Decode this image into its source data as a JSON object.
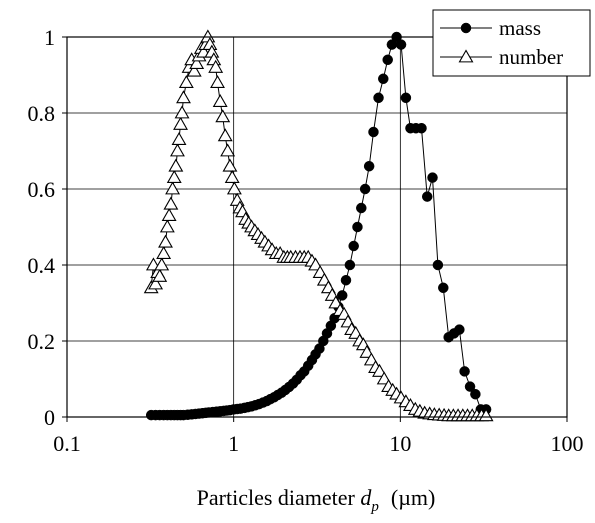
{
  "chart_data": {
    "type": "scatter",
    "xscale": "log",
    "xlim": [
      0.1,
      100
    ],
    "ylim": [
      0,
      1
    ],
    "xticks": [
      "0.1",
      "1",
      "10",
      "100"
    ],
    "yticks": [
      "0",
      "0.2",
      "0.4",
      "0.6",
      "0.8",
      "1"
    ],
    "grid": "horizontal and vertical major gridlines",
    "legend_position": "top-right",
    "xlabel": {
      "prefix": "Particles diameter ",
      "symbol": "d",
      "subscript": "p",
      "unit": "(µm)"
    },
    "series": [
      {
        "name": "mass",
        "marker": "filled-circle",
        "x": [
          0.32,
          0.34,
          0.36,
          0.38,
          0.4,
          0.42,
          0.44,
          0.46,
          0.48,
          0.5,
          0.53,
          0.56,
          0.59,
          0.62,
          0.65,
          0.68,
          0.71,
          0.75,
          0.79,
          0.83,
          0.87,
          0.91,
          0.95,
          1.0,
          1.05,
          1.1,
          1.16,
          1.22,
          1.28,
          1.35,
          1.42,
          1.5,
          1.58,
          1.66,
          1.75,
          1.84,
          1.94,
          2.04,
          2.15,
          2.27,
          2.39,
          2.52,
          2.65,
          2.8,
          2.95,
          3.1,
          3.27,
          3.45,
          3.63,
          3.83,
          4.03,
          4.25,
          4.48,
          4.72,
          4.98,
          5.25,
          5.53,
          5.83,
          6.15,
          6.5,
          6.9,
          7.4,
          7.9,
          8.4,
          8.9,
          9.5,
          10.1,
          10.8,
          11.5,
          12.4,
          13.4,
          14.5,
          15.6,
          16.8,
          18.1,
          19.5,
          21.0,
          22.6,
          24.3,
          26.2,
          28.2,
          30.4,
          32.7
        ],
        "y": [
          0.005,
          0.005,
          0.005,
          0.005,
          0.005,
          0.005,
          0.005,
          0.005,
          0.005,
          0.005,
          0.006,
          0.007,
          0.008,
          0.009,
          0.01,
          0.011,
          0.012,
          0.013,
          0.014,
          0.015,
          0.016,
          0.017,
          0.018,
          0.02,
          0.021,
          0.022,
          0.024,
          0.026,
          0.028,
          0.031,
          0.034,
          0.038,
          0.042,
          0.047,
          0.052,
          0.058,
          0.064,
          0.071,
          0.079,
          0.088,
          0.098,
          0.11,
          0.12,
          0.135,
          0.15,
          0.165,
          0.18,
          0.2,
          0.22,
          0.24,
          0.26,
          0.29,
          0.32,
          0.36,
          0.4,
          0.45,
          0.5,
          0.55,
          0.6,
          0.66,
          0.75,
          0.84,
          0.89,
          0.94,
          0.98,
          1.0,
          0.98,
          0.84,
          0.76,
          0.76,
          0.76,
          0.58,
          0.63,
          0.4,
          0.34,
          0.21,
          0.22,
          0.23,
          0.12,
          0.08,
          0.06,
          0.02,
          0.02
        ]
      },
      {
        "name": "number",
        "marker": "open-triangle",
        "x": [
          0.32,
          0.33,
          0.34,
          0.35,
          0.36,
          0.37,
          0.38,
          0.39,
          0.4,
          0.41,
          0.42,
          0.43,
          0.44,
          0.45,
          0.46,
          0.47,
          0.48,
          0.49,
          0.5,
          0.52,
          0.54,
          0.56,
          0.58,
          0.6,
          0.62,
          0.64,
          0.66,
          0.68,
          0.7,
          0.72,
          0.74,
          0.76,
          0.78,
          0.8,
          0.83,
          0.86,
          0.89,
          0.92,
          0.95,
          0.98,
          1.01,
          1.05,
          1.09,
          1.13,
          1.18,
          1.23,
          1.28,
          1.34,
          1.4,
          1.47,
          1.54,
          1.62,
          1.7,
          1.8,
          1.9,
          2.0,
          2.1,
          2.2,
          2.35,
          2.5,
          2.65,
          2.8,
          2.95,
          3.1,
          3.3,
          3.5,
          3.7,
          3.9,
          4.1,
          4.35,
          4.6,
          4.85,
          5.1,
          5.4,
          5.7,
          6.0,
          6.3,
          6.7,
          7.1,
          7.5,
          8.0,
          8.5,
          9.0,
          9.5,
          10.1,
          10.8,
          11.5,
          12.3,
          13.1,
          14.0,
          15.0,
          16.0,
          17.1,
          18.3,
          19.5,
          20.8,
          22.2,
          23.7,
          25.3,
          27.0,
          28.8,
          30.7,
          32.7
        ],
        "y": [
          0.34,
          0.4,
          0.35,
          0.38,
          0.37,
          0.4,
          0.43,
          0.46,
          0.5,
          0.53,
          0.56,
          0.6,
          0.63,
          0.66,
          0.7,
          0.73,
          0.77,
          0.8,
          0.84,
          0.88,
          0.92,
          0.94,
          0.91,
          0.93,
          0.95,
          0.97,
          0.96,
          0.98,
          1.0,
          0.98,
          0.96,
          0.94,
          0.92,
          0.88,
          0.83,
          0.79,
          0.74,
          0.7,
          0.66,
          0.63,
          0.6,
          0.57,
          0.55,
          0.54,
          0.52,
          0.51,
          0.5,
          0.49,
          0.48,
          0.47,
          0.46,
          0.45,
          0.44,
          0.43,
          0.43,
          0.42,
          0.42,
          0.42,
          0.42,
          0.42,
          0.42,
          0.42,
          0.41,
          0.4,
          0.38,
          0.36,
          0.34,
          0.32,
          0.3,
          0.28,
          0.27,
          0.25,
          0.23,
          0.22,
          0.2,
          0.19,
          0.17,
          0.15,
          0.13,
          0.12,
          0.1,
          0.08,
          0.07,
          0.06,
          0.05,
          0.04,
          0.03,
          0.02,
          0.015,
          0.01,
          0.008,
          0.006,
          0.005,
          0.004,
          0.003,
          0.003,
          0.003,
          0.003,
          0.003,
          0.003,
          0.003,
          0.003,
          0.003
        ]
      }
    ]
  }
}
